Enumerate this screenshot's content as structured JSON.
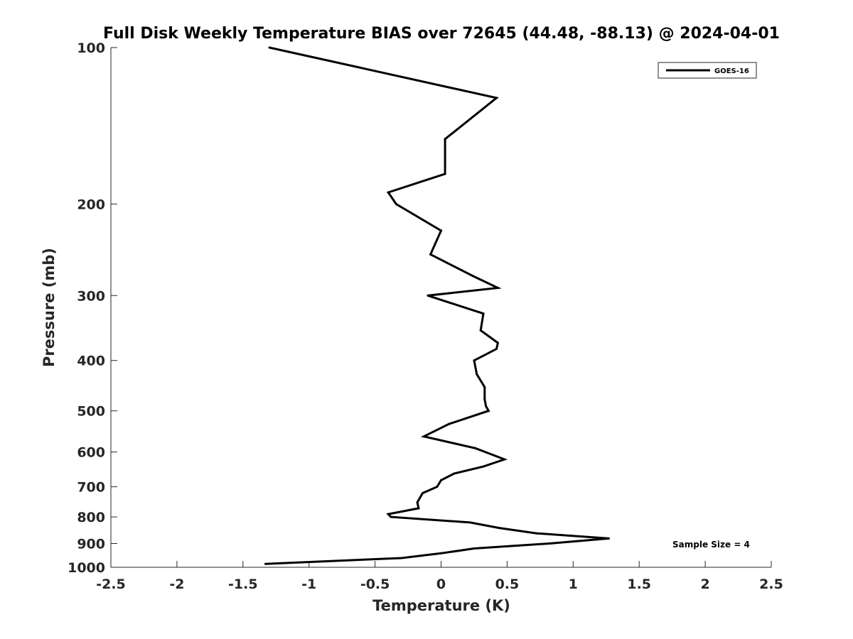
{
  "chart_data": {
    "type": "line",
    "title": "Full Disk Weekly Temperature BIAS over 72645 (44.48, -88.13) @ 2024-04-01",
    "xlabel": "Temperature (K)",
    "ylabel": "Pressure (mb)",
    "xlim": [
      -2.5,
      2.5
    ],
    "ylim": [
      100,
      1000
    ],
    "y_scale": "log",
    "y_inverted": true,
    "grid": false,
    "legend_position": "top-right",
    "x_ticks": [
      -2.5,
      -2,
      -1.5,
      -1,
      -0.5,
      0,
      0.5,
      1,
      1.5,
      2,
      2.5
    ],
    "x_tick_labels": [
      "-2.5",
      "-2",
      "-1.5",
      "-1",
      "-0.5",
      "0",
      "0.5",
      "1",
      "1.5",
      "2",
      "2.5"
    ],
    "y_ticks": [
      100,
      200,
      300,
      400,
      500,
      600,
      700,
      800,
      900,
      1000
    ],
    "y_tick_labels": [
      "100",
      "200",
      "300",
      "400",
      "500",
      "600",
      "700",
      "800",
      "900",
      "1000"
    ],
    "annotation": "Sample Size = 4",
    "series": [
      {
        "name": "GOES-16",
        "color": "#000000",
        "points": [
          {
            "x": -1.3,
            "y": 100
          },
          {
            "x": 0.42,
            "y": 125
          },
          {
            "x": 0.03,
            "y": 150
          },
          {
            "x": 0.03,
            "y": 175
          },
          {
            "x": -0.4,
            "y": 190
          },
          {
            "x": -0.34,
            "y": 200
          },
          {
            "x": 0.0,
            "y": 225
          },
          {
            "x": -0.08,
            "y": 250
          },
          {
            "x": 0.24,
            "y": 275
          },
          {
            "x": 0.43,
            "y": 290
          },
          {
            "x": -0.1,
            "y": 300
          },
          {
            "x": 0.32,
            "y": 325
          },
          {
            "x": 0.3,
            "y": 350
          },
          {
            "x": 0.43,
            "y": 370
          },
          {
            "x": 0.42,
            "y": 380
          },
          {
            "x": 0.25,
            "y": 400
          },
          {
            "x": 0.27,
            "y": 425
          },
          {
            "x": 0.33,
            "y": 450
          },
          {
            "x": 0.33,
            "y": 475
          },
          {
            "x": 0.34,
            "y": 490
          },
          {
            "x": 0.36,
            "y": 500
          },
          {
            "x": 0.06,
            "y": 530
          },
          {
            "x": -0.13,
            "y": 560
          },
          {
            "x": 0.26,
            "y": 590
          },
          {
            "x": 0.48,
            "y": 620
          },
          {
            "x": 0.32,
            "y": 640
          },
          {
            "x": 0.1,
            "y": 660
          },
          {
            "x": 0.0,
            "y": 680
          },
          {
            "x": -0.03,
            "y": 700
          },
          {
            "x": -0.14,
            "y": 720
          },
          {
            "x": -0.18,
            "y": 750
          },
          {
            "x": -0.17,
            "y": 770
          },
          {
            "x": -0.4,
            "y": 790
          },
          {
            "x": -0.38,
            "y": 800
          },
          {
            "x": 0.22,
            "y": 820
          },
          {
            "x": 0.44,
            "y": 840
          },
          {
            "x": 0.72,
            "y": 860
          },
          {
            "x": 1.27,
            "y": 880
          },
          {
            "x": 0.82,
            "y": 900
          },
          {
            "x": 0.25,
            "y": 920
          },
          {
            "x": 0.0,
            "y": 940
          },
          {
            "x": -0.3,
            "y": 960
          },
          {
            "x": -1.33,
            "y": 985
          }
        ]
      }
    ]
  }
}
